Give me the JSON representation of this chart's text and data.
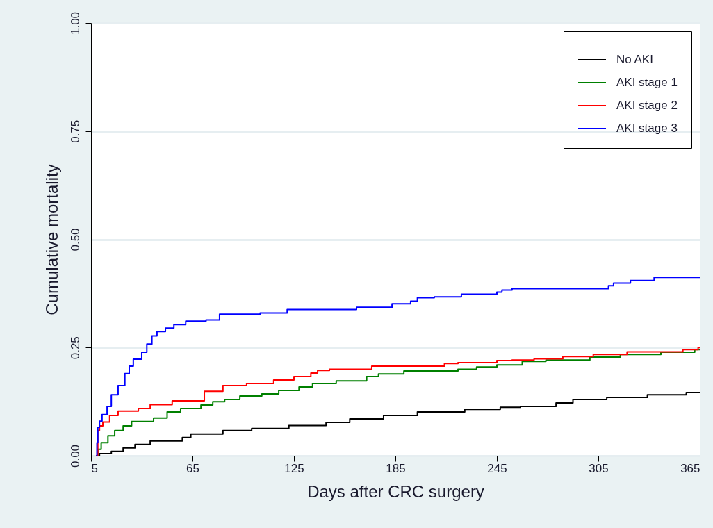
{
  "chart_data": {
    "type": "step",
    "xlabel": "Days after CRC surgery",
    "ylabel": "Cumulative mortality",
    "xlim": [
      5,
      365
    ],
    "ylim": [
      0,
      1
    ],
    "xticks": [
      5,
      65,
      125,
      185,
      245,
      305,
      365
    ],
    "yticks": [
      {
        "value": 0,
        "label": "0.00"
      },
      {
        "value": 0.25,
        "label": "0.25"
      },
      {
        "value": 0.5,
        "label": "0.50"
      },
      {
        "value": 0.75,
        "label": "0.75"
      },
      {
        "value": 1,
        "label": "1.00"
      }
    ],
    "grid": "y",
    "legend": "top right",
    "line_style": "solid",
    "marker": "none",
    "series": [
      {
        "name": "No AKI",
        "color": "#000000",
        "x": [
          8,
          10,
          17,
          24,
          31,
          40,
          59,
          64,
          83,
          100,
          122,
          144,
          158,
          178,
          198,
          226,
          247,
          259,
          280,
          290,
          310,
          334,
          357,
          365
        ],
        "values": [
          0,
          0.005,
          0.01,
          0.018,
          0.026,
          0.034,
          0.042,
          0.05,
          0.058,
          0.063,
          0.07,
          0.077,
          0.085,
          0.093,
          0.101,
          0.107,
          0.112,
          0.114,
          0.122,
          0.13,
          0.135,
          0.141,
          0.146,
          0.146
        ]
      },
      {
        "name": "AKI stage 1",
        "color": "#008000",
        "x": [
          8,
          9,
          11,
          15,
          19,
          24,
          29,
          42,
          50,
          58,
          70,
          77,
          84,
          93,
          106,
          116,
          128,
          136,
          150,
          168,
          175,
          190,
          222,
          233,
          245,
          260,
          274,
          300,
          318,
          342,
          362,
          365
        ],
        "values": [
          0,
          0.015,
          0.03,
          0.046,
          0.058,
          0.069,
          0.079,
          0.087,
          0.101,
          0.109,
          0.117,
          0.125,
          0.13,
          0.138,
          0.143,
          0.151,
          0.159,
          0.167,
          0.173,
          0.183,
          0.189,
          0.196,
          0.2,
          0.205,
          0.21,
          0.218,
          0.221,
          0.228,
          0.234,
          0.239,
          0.245,
          0.245
        ]
      },
      {
        "name": "AKI stage 2",
        "color": "#ff0000",
        "x": [
          8,
          9,
          10,
          12,
          16,
          21,
          33,
          40,
          53,
          72,
          83,
          97,
          113,
          125,
          135,
          139,
          146,
          171,
          214,
          222,
          245,
          254,
          267,
          284,
          302,
          322,
          355,
          364,
          365
        ],
        "values": [
          0,
          0.058,
          0.069,
          0.078,
          0.093,
          0.103,
          0.109,
          0.118,
          0.127,
          0.149,
          0.162,
          0.167,
          0.175,
          0.183,
          0.191,
          0.197,
          0.2,
          0.207,
          0.213,
          0.215,
          0.22,
          0.221,
          0.224,
          0.229,
          0.234,
          0.24,
          0.245,
          0.25,
          0.25
        ]
      },
      {
        "name": "AKI stage 3",
        "color": "#0000ff",
        "x": [
          8,
          8.5,
          9,
          10,
          11.5,
          14.5,
          17,
          21,
          25,
          27.6,
          30,
          35,
          38,
          41,
          44,
          49,
          54,
          61,
          73,
          81,
          105,
          121,
          162,
          183,
          194,
          198,
          208,
          224,
          245,
          248,
          254,
          311,
          314,
          324,
          338,
          365
        ],
        "values": [
          0,
          0.03,
          0.066,
          0.08,
          0.095,
          0.114,
          0.141,
          0.162,
          0.19,
          0.207,
          0.223,
          0.239,
          0.258,
          0.277,
          0.287,
          0.295,
          0.303,
          0.311,
          0.314,
          0.327,
          0.33,
          0.338,
          0.343,
          0.351,
          0.357,
          0.365,
          0.367,
          0.373,
          0.378,
          0.383,
          0.386,
          0.393,
          0.399,
          0.405,
          0.412,
          0.412
        ]
      }
    ]
  }
}
